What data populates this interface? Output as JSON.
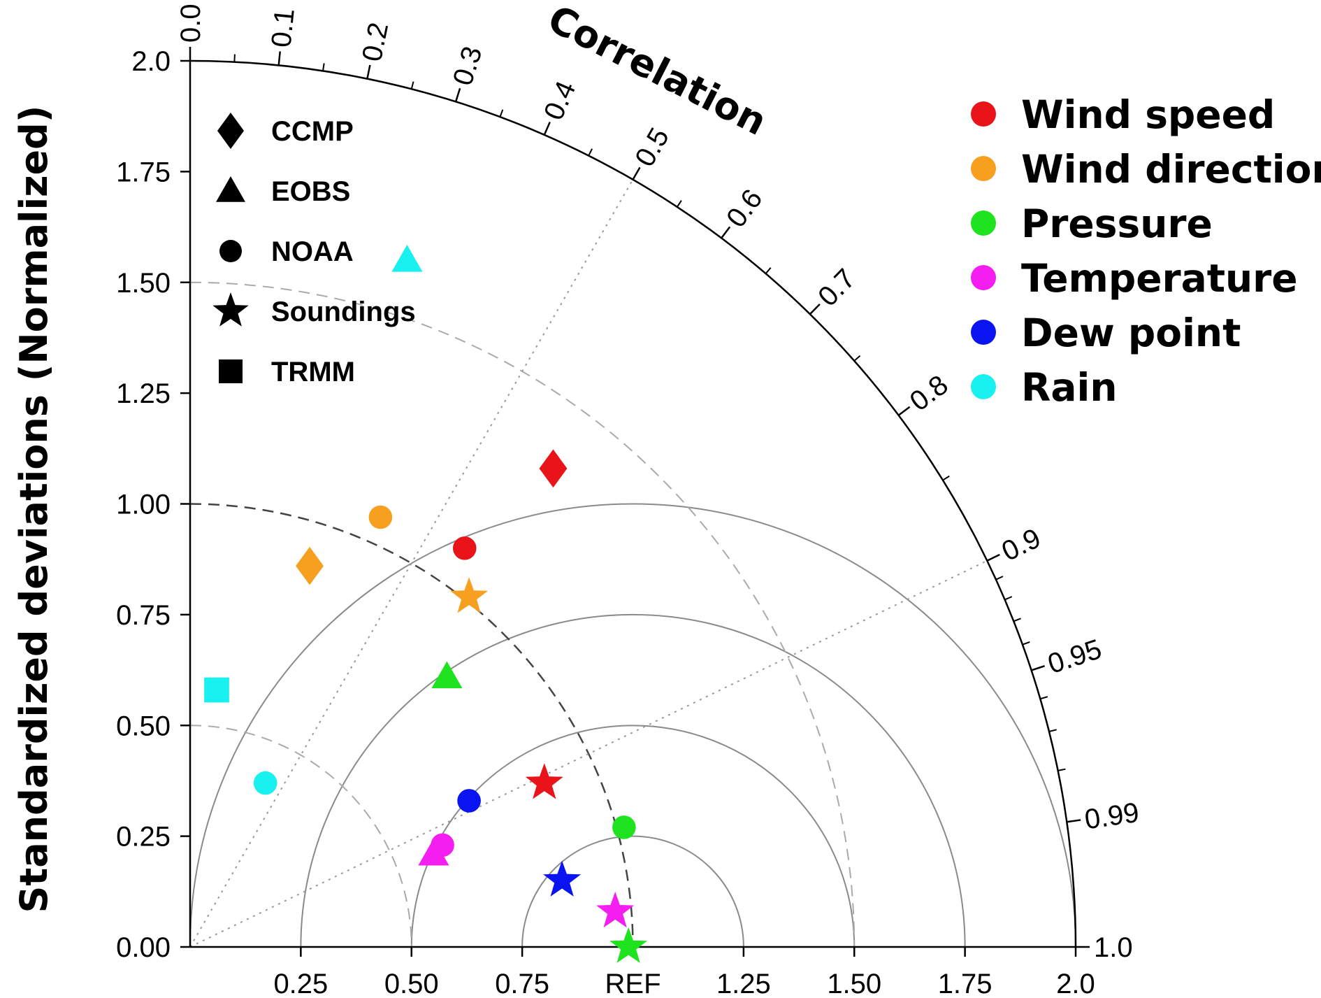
{
  "chart_data": {
    "type": "scatter",
    "subtype": "taylor-diagram",
    "ylabel": "Standardized deviations (Normalized)",
    "arc_label": "Correlation",
    "std_range": [
      0,
      2.0
    ],
    "x_ticks": [
      {
        "value": 0.25,
        "label": "0.25"
      },
      {
        "value": 0.5,
        "label": "0.50"
      },
      {
        "value": 0.75,
        "label": "0.75"
      },
      {
        "value": 1.0,
        "label": "REF"
      },
      {
        "value": 1.25,
        "label": "1.25"
      },
      {
        "value": 1.5,
        "label": "1.50"
      },
      {
        "value": 1.75,
        "label": "1.75"
      },
      {
        "value": 2.0,
        "label": "2.0"
      }
    ],
    "y_ticks": [
      {
        "value": 0.0,
        "label": "0.00"
      },
      {
        "value": 0.25,
        "label": "0.25"
      },
      {
        "value": 0.5,
        "label": "0.50"
      },
      {
        "value": 0.75,
        "label": "0.75"
      },
      {
        "value": 1.0,
        "label": "1.00"
      },
      {
        "value": 1.25,
        "label": "1.25"
      },
      {
        "value": 1.5,
        "label": "1.50"
      },
      {
        "value": 1.75,
        "label": "1.75"
      },
      {
        "value": 2.0,
        "label": "2.0"
      }
    ],
    "correlation_labels": [
      {
        "value": 0.0,
        "label": "0.0"
      },
      {
        "value": 0.1,
        "label": "0.1"
      },
      {
        "value": 0.2,
        "label": "0.2"
      },
      {
        "value": 0.3,
        "label": "0.3"
      },
      {
        "value": 0.4,
        "label": "0.4"
      },
      {
        "value": 0.5,
        "label": "0.5"
      },
      {
        "value": 0.6,
        "label": "0.6"
      },
      {
        "value": 0.7,
        "label": "0.7"
      },
      {
        "value": 0.8,
        "label": "0.8"
      },
      {
        "value": 0.9,
        "label": "0.9"
      },
      {
        "value": 0.95,
        "label": "0.95"
      },
      {
        "value": 0.99,
        "label": "0.99"
      },
      {
        "value": 1.0,
        "label": "1.0"
      }
    ],
    "correlation_minor_ticks": [
      0.05,
      0.15,
      0.25,
      0.35,
      0.45,
      0.55,
      0.65,
      0.75,
      0.85,
      0.91,
      0.92,
      0.93,
      0.94,
      0.96,
      0.97,
      0.98
    ],
    "dotted_correlation_lines": [
      0.5,
      0.9
    ],
    "rms_circles": [
      0.25,
      0.5,
      0.75,
      1.0
    ],
    "dashed_std_arcs": [
      0.5,
      1.0,
      1.5
    ],
    "grid": true,
    "marker_legend": {
      "position": "top-left",
      "items": [
        {
          "marker": "diamond",
          "label": "CCMP"
        },
        {
          "marker": "triangle",
          "label": "EOBS"
        },
        {
          "marker": "circle",
          "label": "NOAA"
        },
        {
          "marker": "star",
          "label": "Soundings"
        },
        {
          "marker": "square",
          "label": "TRMM"
        }
      ]
    },
    "color_legend": {
      "position": "top-right",
      "items": [
        {
          "color": "#e8141a",
          "label": "Wind speed"
        },
        {
          "color": "#f7a020",
          "label": "Wind direction"
        },
        {
          "color": "#1ee31e",
          "label": "Pressure"
        },
        {
          "color": "#f51ef0",
          "label": "Temperature"
        },
        {
          "color": "#0a14f0",
          "label": "Dew point"
        },
        {
          "color": "#19f0f0",
          "label": "Rain"
        }
      ]
    },
    "points": [
      {
        "source": "CCMP",
        "variable": "Wind speed",
        "marker": "diamond",
        "color": "#e8141a",
        "x": 0.82,
        "y": 1.08
      },
      {
        "source": "CCMP",
        "variable": "Wind direction",
        "marker": "diamond",
        "color": "#f7a020",
        "x": 0.27,
        "y": 0.86
      },
      {
        "source": "NOAA",
        "variable": "Wind direction",
        "marker": "circle",
        "color": "#f7a020",
        "x": 0.43,
        "y": 0.97
      },
      {
        "source": "NOAA",
        "variable": "Wind speed",
        "marker": "circle",
        "color": "#e8141a",
        "x": 0.62,
        "y": 0.9
      },
      {
        "source": "Soundings",
        "variable": "Wind direction",
        "marker": "star",
        "color": "#f7a020",
        "x": 0.63,
        "y": 0.79
      },
      {
        "source": "EOBS",
        "variable": "Pressure",
        "marker": "triangle",
        "color": "#1ee31e",
        "x": 0.58,
        "y": 0.61
      },
      {
        "source": "EOBS",
        "variable": "Rain",
        "marker": "triangle",
        "color": "#19f0f0",
        "x": 0.49,
        "y": 1.55
      },
      {
        "source": "TRMM",
        "variable": "Rain",
        "marker": "square",
        "color": "#19f0f0",
        "x": 0.06,
        "y": 0.58
      },
      {
        "source": "NOAA",
        "variable": "Rain",
        "marker": "circle",
        "color": "#19f0f0",
        "x": 0.17,
        "y": 0.37
      },
      {
        "source": "Soundings",
        "variable": "Wind speed",
        "marker": "star",
        "color": "#e8141a",
        "x": 0.8,
        "y": 0.37
      },
      {
        "source": "NOAA",
        "variable": "Dew point",
        "marker": "circle",
        "color": "#0a14f0",
        "x": 0.63,
        "y": 0.33
      },
      {
        "source": "NOAA",
        "variable": "Pressure",
        "marker": "circle",
        "color": "#1ee31e",
        "x": 0.98,
        "y": 0.27
      },
      {
        "source": "NOAA",
        "variable": "Temperature",
        "marker": "circle",
        "color": "#f51ef0",
        "x": 0.57,
        "y": 0.23
      },
      {
        "source": "EOBS",
        "variable": "Temperature",
        "marker": "triangle",
        "color": "#f51ef0",
        "x": 0.55,
        "y": 0.21
      },
      {
        "source": "Soundings",
        "variable": "Dew point",
        "marker": "star",
        "color": "#0a14f0",
        "x": 0.84,
        "y": 0.15
      },
      {
        "source": "Soundings",
        "variable": "Temperature",
        "marker": "star",
        "color": "#f51ef0",
        "x": 0.96,
        "y": 0.08
      },
      {
        "source": "Soundings",
        "variable": "Pressure",
        "marker": "star",
        "color": "#1ee31e",
        "x": 0.99,
        "y": 0.0
      }
    ]
  }
}
